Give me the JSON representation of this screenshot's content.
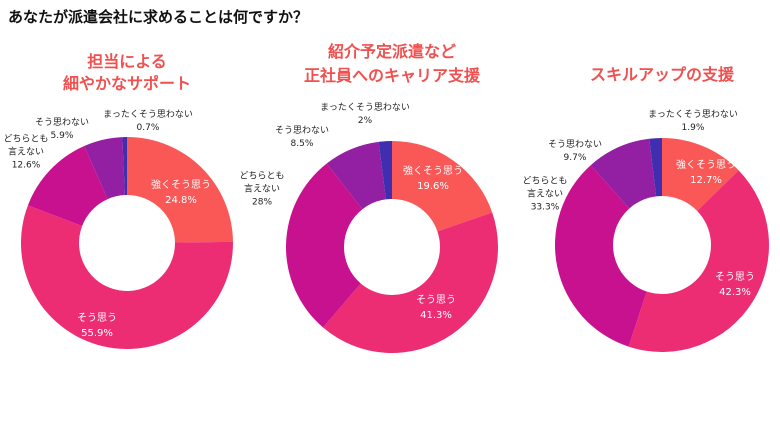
{
  "title": "あなたが派遣会社に求めることは何ですか？",
  "chart_data": [
    {
      "type": "pie",
      "donut": true,
      "title": [
        "担当による",
        "細やかなサポート"
      ],
      "categories": [
        "強くそう思う",
        "そう思う",
        "どちらとも言えない",
        "そう思わない",
        "まったくそう思わない"
      ],
      "label_lines": [
        [
          "強くそう思う"
        ],
        [
          "そう思う"
        ],
        [
          "どちらとも",
          "言えない"
        ],
        [
          "そう思わない"
        ],
        [
          "まったくそう思わない"
        ]
      ],
      "values": [
        24.8,
        55.9,
        12.6,
        5.9,
        0.7
      ],
      "value_labels": [
        "24.8%",
        "55.9%",
        "12.6%",
        "5.9%",
        "0.7%"
      ]
    },
    {
      "type": "pie",
      "donut": true,
      "title": [
        "紹介予定派遣など",
        "正社員へのキャリア支援"
      ],
      "categories": [
        "強くそう思う",
        "そう思う",
        "どちらとも言えない",
        "そう思わない",
        "まったくそう思わない"
      ],
      "label_lines": [
        [
          "強くそう思う"
        ],
        [
          "そう思う"
        ],
        [
          "どちらとも",
          "言えない"
        ],
        [
          "そう思わない"
        ],
        [
          "まったくそう思わない"
        ]
      ],
      "values": [
        19.6,
        41.3,
        28,
        8.5,
        2
      ],
      "value_labels": [
        "19.6%",
        "41.3%",
        "28%",
        "8.5%",
        "2%"
      ]
    },
    {
      "type": "pie",
      "donut": true,
      "title": [
        "スキルアップの支援"
      ],
      "categories": [
        "強くそう思う",
        "そう思う",
        "どちらとも言えない",
        "そう思わない",
        "まったくそう思わない"
      ],
      "label_lines": [
        [
          "強くそう思う"
        ],
        [
          "そう思う"
        ],
        [
          "どちらとも",
          "言えない"
        ],
        [
          "そう思わない"
        ],
        [
          "まったくそう思わない"
        ]
      ],
      "values": [
        12.7,
        42.3,
        33.3,
        9.7,
        1.9
      ],
      "value_labels": [
        "12.7%",
        "42.3%",
        "33.3%",
        "9.7%",
        "1.9%"
      ]
    }
  ],
  "colors": [
    "#fa5757",
    "#ec2d74",
    "#c8118e",
    "#931fa2",
    "#3f2fb0"
  ]
}
